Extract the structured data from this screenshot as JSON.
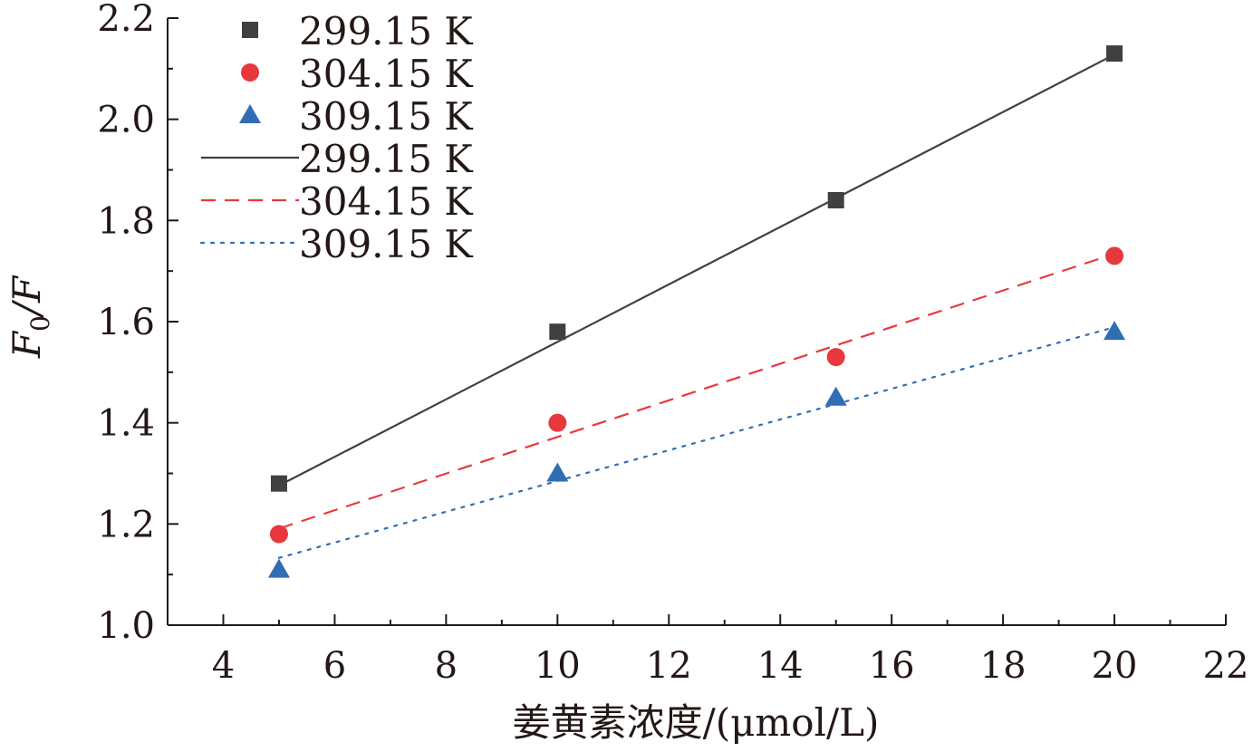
{
  "chart_data": {
    "type": "scatter",
    "xlabel": "姜黄素浓度/(μmol/L)",
    "ylabel_main": "F",
    "ylabel_sub": "0",
    "ylabel_tail": "/F",
    "xlim": [
      3,
      22
    ],
    "ylim": [
      1.0,
      2.2
    ],
    "xticks": [
      4,
      6,
      8,
      10,
      12,
      14,
      16,
      18,
      20,
      22
    ],
    "yticks": [
      1.0,
      1.2,
      1.4,
      1.6,
      1.8,
      2.0,
      2.2
    ],
    "x_tick_labels": [
      "4",
      "6",
      "8",
      "10",
      "12",
      "14",
      "16",
      "18",
      "20",
      "22"
    ],
    "y_tick_labels": [
      "1.0",
      "1.2",
      "1.4",
      "1.6",
      "1.8",
      "2.0",
      "2.2"
    ],
    "grid": false,
    "legend_position": "top-left",
    "series": [
      {
        "name": "299.15 K",
        "marker": "square",
        "color": "#404040",
        "x": [
          5,
          10,
          15,
          20
        ],
        "y": [
          1.28,
          1.58,
          1.84,
          2.13
        ]
      },
      {
        "name": "304.15 K",
        "marker": "circle",
        "color": "#e8383d",
        "x": [
          5,
          10,
          15,
          20
        ],
        "y": [
          1.18,
          1.4,
          1.53,
          1.73
        ]
      },
      {
        "name": "309.15 K",
        "marker": "triangle",
        "color": "#2f6eb5",
        "x": [
          5,
          10,
          15,
          20
        ],
        "y": [
          1.11,
          1.3,
          1.45,
          1.58
        ]
      }
    ],
    "fits": [
      {
        "name": "299.15 K",
        "style": "solid",
        "color": "#404040",
        "x": [
          5,
          20
        ],
        "y": [
          1.276,
          2.128
        ]
      },
      {
        "name": "304.15 K",
        "style": "dashed",
        "color": "#e8383d",
        "x": [
          5,
          20
        ],
        "y": [
          1.191,
          1.734
        ]
      },
      {
        "name": "309.15 K",
        "style": "dotted",
        "color": "#2f6eb5",
        "x": [
          5,
          20
        ],
        "y": [
          1.133,
          1.589
        ]
      }
    ]
  }
}
